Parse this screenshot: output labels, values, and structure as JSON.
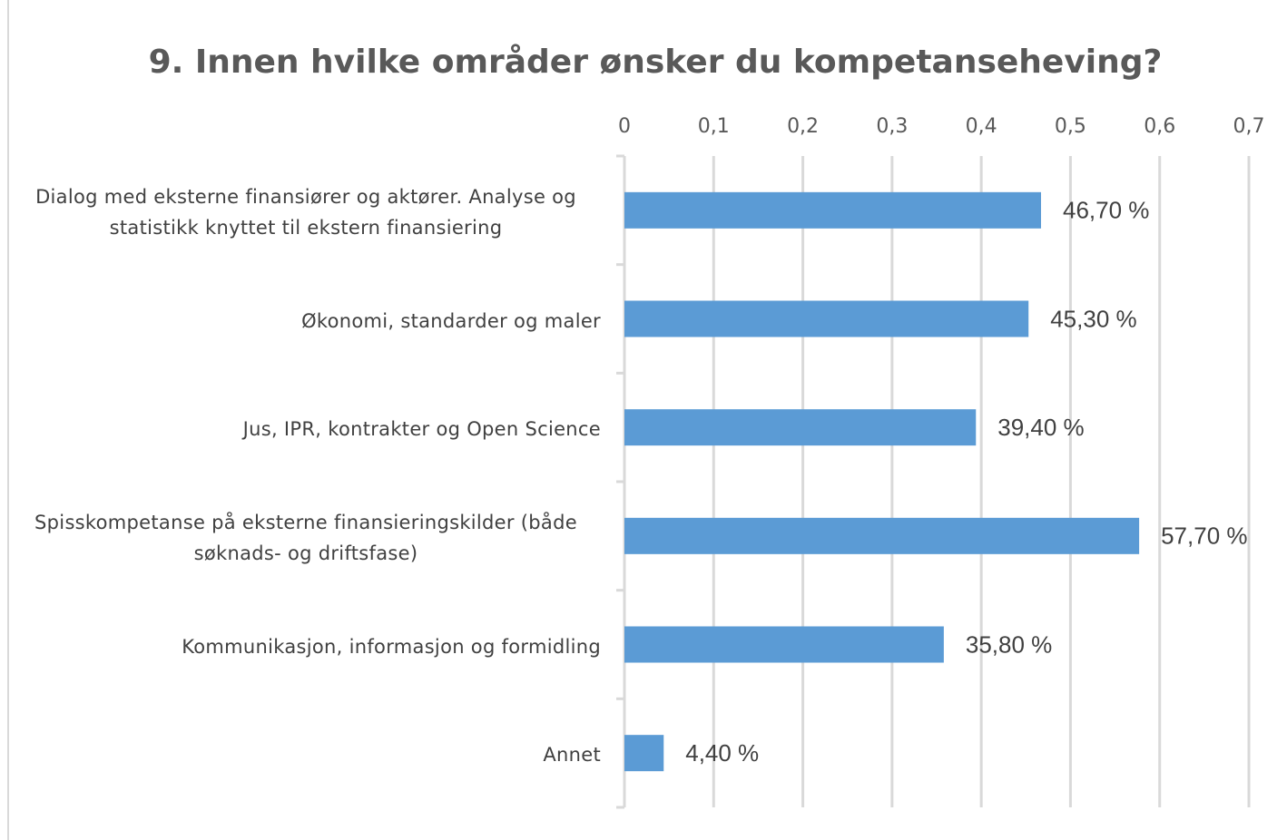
{
  "chart_data": {
    "type": "bar",
    "orientation": "horizontal",
    "title": "9. Innen hvilke områder ønsker du kompetanseheving?",
    "categories": [
      "Dialog med eksterne finansiører og aktører. Analyse og statistikk knyttet til ekstern finansiering",
      "Økonomi, standarder og maler",
      "Jus, IPR, kontrakter og Open Science",
      "Spisskompetanse på eksterne finansieringskilder (både søknads- og driftsfase)",
      "Kommunikasjon, informasjon og formidling",
      "Annet"
    ],
    "values": [
      0.467,
      0.453,
      0.394,
      0.577,
      0.358,
      0.044
    ],
    "value_labels": [
      "46,70 %",
      "45,30 %",
      "39,40 %",
      "57,70 %",
      "35,80 %",
      "4,40 %"
    ],
    "color": "#5b9bd5",
    "xlim": [
      0,
      0.7
    ],
    "xticks": [
      0,
      {
        "value": 0.1,
        "label": "0,1"
      },
      {
        "value": 0.2,
        "label": "0,2"
      },
      {
        "value": 0.3,
        "label": "0,3"
      },
      {
        "value": 0.4,
        "label": "0,4"
      },
      {
        "value": 0.5,
        "label": "0,5"
      },
      {
        "value": 0.6,
        "label": "0,6"
      },
      {
        "value": 0.7,
        "label": "0,7"
      }
    ],
    "grid": true
  }
}
